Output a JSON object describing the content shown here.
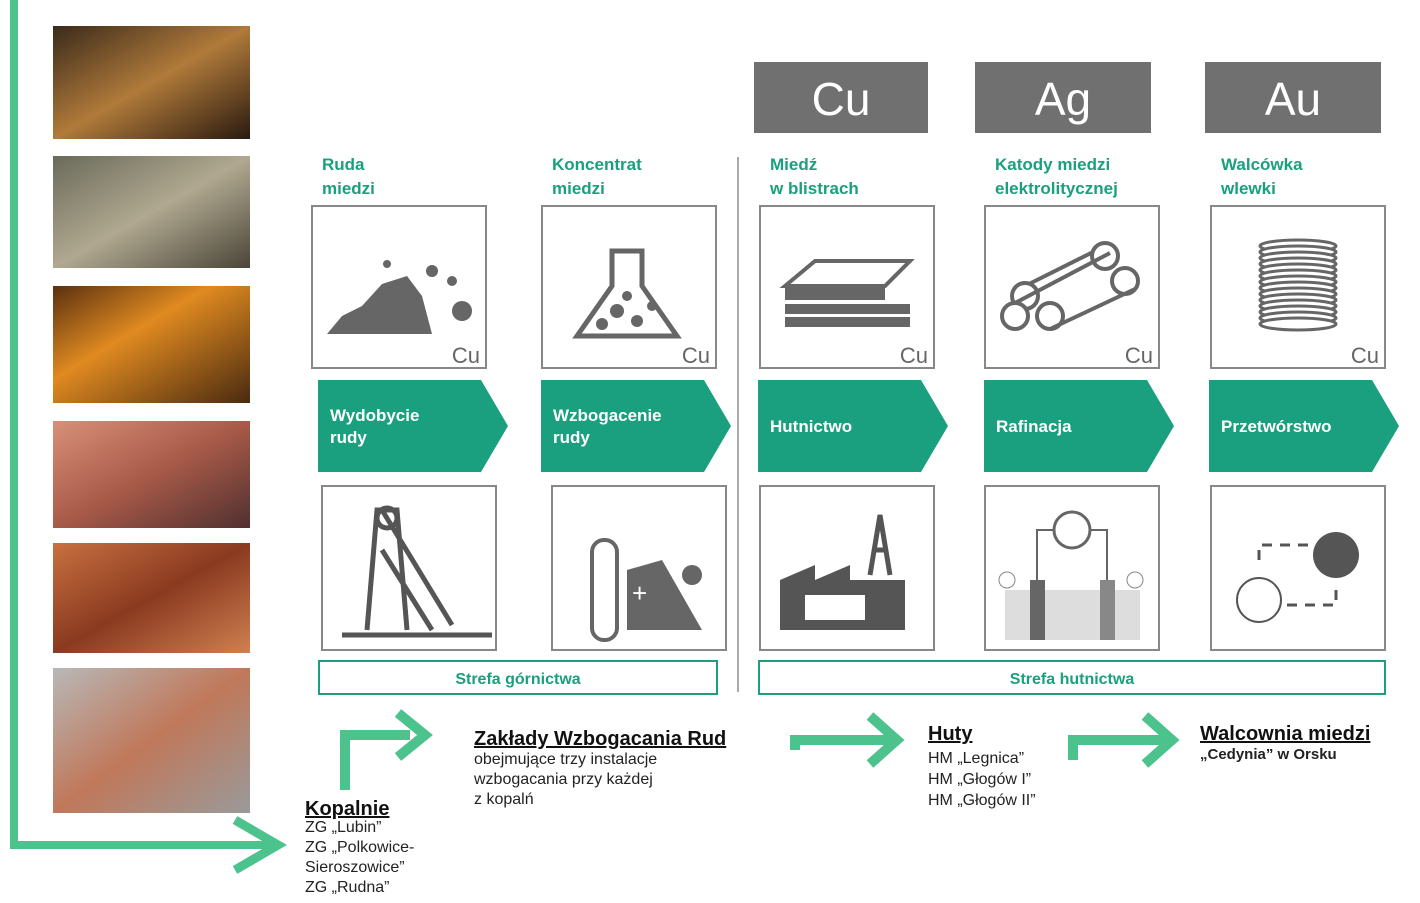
{
  "metals": [
    "Cu",
    "Ag",
    "Au"
  ],
  "products": [
    {
      "label": [
        "Ruda",
        "miedzi"
      ],
      "element": "Cu"
    },
    {
      "label": [
        "Koncentrat",
        "miedzi"
      ],
      "element": "Cu"
    },
    {
      "label": [
        "Miedź",
        "w blistrach"
      ],
      "element": "Cu"
    },
    {
      "label": [
        "Katody miedzi",
        "elektrolitycznej"
      ],
      "element": "Cu"
    },
    {
      "label": [
        "Walcówka",
        "wlewki"
      ],
      "element": "Cu"
    }
  ],
  "processes": [
    [
      "Wydobycie",
      "rudy"
    ],
    [
      "Wzbogacenie",
      "rudy"
    ],
    [
      "Hutnictwo"
    ],
    [
      "Rafinacja"
    ],
    [
      "Przetwórstwo"
    ]
  ],
  "zones": [
    "Strefa górnictwa",
    "Strefa hutnictwa"
  ],
  "sites": [
    {
      "title": "Kopalnie",
      "lines": [
        "ZG „Lubin”",
        "ZG „Polkowice-",
        "Sieroszowice”",
        "ZG „Rudna”"
      ]
    },
    {
      "title": "Zakłady  Wzbogacania Rud",
      "lines": [
        "obejmujące trzy instalacje",
        "wzbogacania przy każdej",
        "z kopalń"
      ]
    },
    {
      "title": "Huty",
      "lines": [
        "HM „Legnica”",
        "HM „Głogów I”",
        "HM „Głogów II”"
      ]
    },
    {
      "title": "Walcownia  miedzi",
      "lines": [
        "„Cedynia”  w Orsku"
      ]
    }
  ]
}
